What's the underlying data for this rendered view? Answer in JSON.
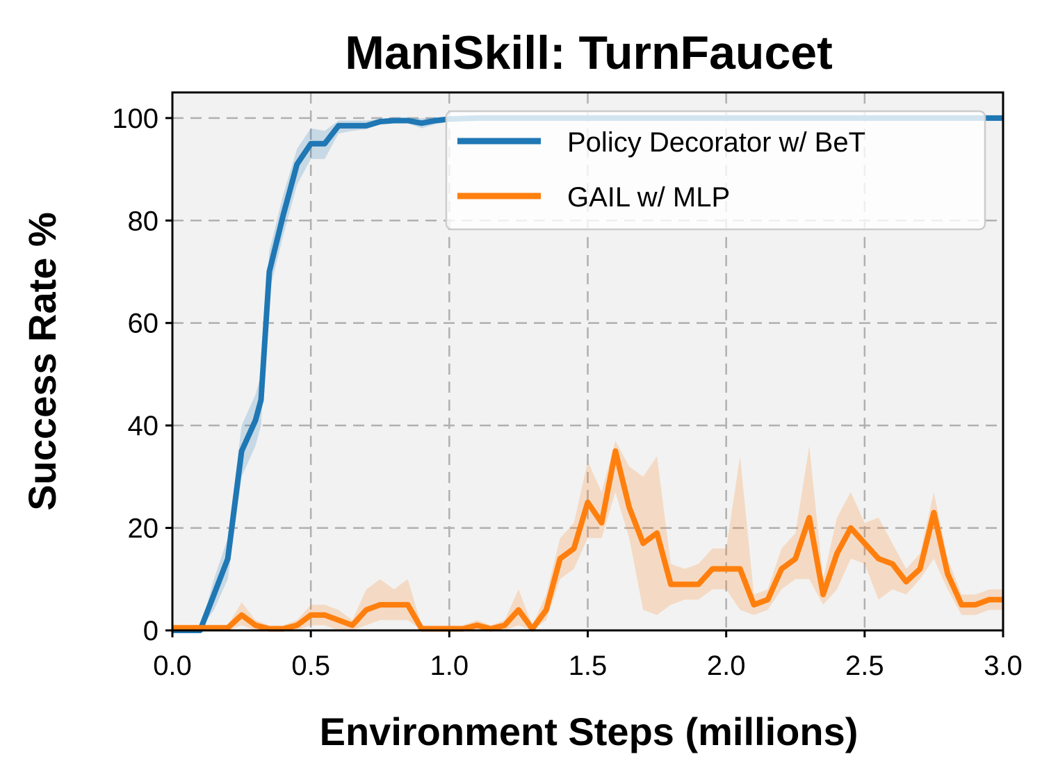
{
  "chart_data": {
    "type": "line",
    "title": "ManiSkill: TurnFaucet",
    "xlabel": "Environment Steps (millions)",
    "ylabel": "Success Rate %",
    "xlim": [
      0,
      3.0
    ],
    "ylim": [
      0,
      105
    ],
    "xticks": [
      "0.0",
      "0.5",
      "1.0",
      "1.5",
      "2.0",
      "2.5",
      "3.0"
    ],
    "yticks": [
      "0",
      "20",
      "40",
      "60",
      "80",
      "100"
    ],
    "grid": true,
    "legend_position": "top-right",
    "colors": {
      "background": "#f2f2f2",
      "grid": "#b0b0b0"
    },
    "series": [
      {
        "name": "Policy Decorator w/ BeT",
        "color": "#1f77b4",
        "x": [
          0.0,
          0.1,
          0.15,
          0.2,
          0.25,
          0.3,
          0.32,
          0.35,
          0.4,
          0.45,
          0.5,
          0.55,
          0.6,
          0.65,
          0.7,
          0.75,
          0.8,
          0.85,
          0.9,
          0.95,
          1.0,
          1.1,
          1.2,
          1.3,
          1.5,
          2.0,
          2.5,
          3.0
        ],
        "y": [
          0,
          0,
          7,
          14,
          35,
          41,
          45,
          70,
          81,
          91,
          95,
          95,
          98.5,
          98.5,
          98.5,
          99.3,
          99.5,
          99.5,
          99,
          99.5,
          99.8,
          100,
          100,
          100,
          100,
          100,
          100,
          100
        ],
        "lower": [
          0,
          0,
          4,
          10,
          30,
          36,
          40,
          66,
          77,
          87,
          92,
          92,
          97,
          97.5,
          97.8,
          98.8,
          99,
          99,
          98,
          98.8,
          99.3,
          99.6,
          99.6,
          99.6,
          99.6,
          99.6,
          99.6,
          99.6
        ],
        "upper": [
          0,
          0,
          10,
          18,
          40,
          46,
          50,
          74,
          85,
          94,
          98,
          97.5,
          99.5,
          99.5,
          99.5,
          99.8,
          100,
          100,
          100,
          100,
          100,
          100,
          100,
          100,
          100,
          100,
          100,
          100
        ]
      },
      {
        "name": "GAIL w/ MLP",
        "color": "#ff7f0e",
        "x": [
          0.0,
          0.1,
          0.2,
          0.25,
          0.3,
          0.35,
          0.4,
          0.45,
          0.5,
          0.55,
          0.6,
          0.65,
          0.7,
          0.75,
          0.8,
          0.85,
          0.9,
          0.95,
          1.0,
          1.05,
          1.1,
          1.15,
          1.2,
          1.25,
          1.3,
          1.35,
          1.4,
          1.45,
          1.5,
          1.55,
          1.6,
          1.65,
          1.7,
          1.75,
          1.8,
          1.85,
          1.9,
          1.95,
          2.0,
          2.05,
          2.1,
          2.15,
          2.2,
          2.25,
          2.3,
          2.35,
          2.4,
          2.45,
          2.5,
          2.55,
          2.6,
          2.65,
          2.7,
          2.75,
          2.8,
          2.85,
          2.9,
          2.95,
          3.0
        ],
        "y": [
          0.5,
          0.5,
          0.5,
          3,
          1,
          0.3,
          0.3,
          1,
          3,
          3,
          2,
          1,
          4,
          5,
          5,
          5,
          0.3,
          0.3,
          0.3,
          0.3,
          1,
          0.3,
          1,
          4,
          0.3,
          4,
          14,
          16,
          25,
          21,
          35,
          24,
          17,
          19,
          9,
          9,
          9,
          12,
          12,
          12,
          5,
          6,
          12,
          14,
          22,
          7,
          15,
          20,
          17,
          14,
          13,
          9.5,
          12,
          23,
          11,
          5,
          5,
          6,
          6
        ],
        "lower": [
          0,
          0,
          0,
          1,
          0,
          0,
          0,
          0,
          1,
          1,
          0,
          0,
          1,
          2,
          2,
          2,
          0,
          0,
          0,
          0,
          0,
          0,
          0,
          1,
          0,
          2,
          10,
          12,
          18,
          18,
          27,
          18,
          4,
          3,
          5,
          6,
          6,
          8,
          8,
          4,
          3,
          4,
          8,
          10,
          10,
          5,
          8,
          14,
          13,
          6,
          8,
          7,
          10,
          14,
          8,
          3,
          3,
          4,
          4
        ],
        "upper": [
          1,
          1,
          1,
          5.5,
          2,
          1,
          1,
          2,
          5,
          5,
          4,
          2,
          8,
          10,
          8,
          10,
          1,
          1,
          1,
          1,
          2,
          1,
          2,
          8,
          1,
          7,
          18,
          21,
          33,
          27,
          37,
          32,
          30,
          34,
          13,
          12,
          13,
          16,
          16,
          34,
          7,
          8,
          16,
          19,
          36,
          10,
          22,
          27,
          21,
          22,
          17,
          12,
          15,
          27,
          14,
          7,
          7,
          8,
          8
        ]
      }
    ]
  }
}
